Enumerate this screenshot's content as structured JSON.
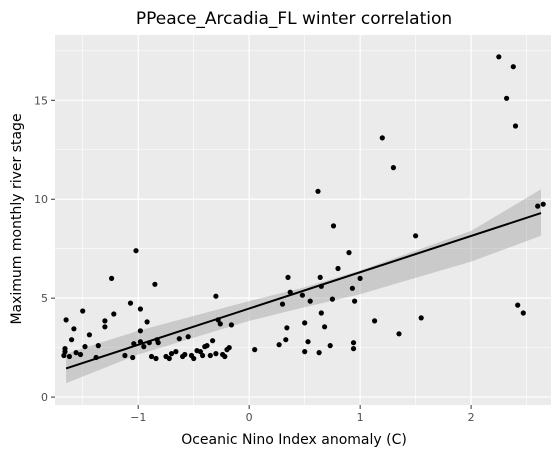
{
  "chart_data": {
    "type": "scatter",
    "title": "PPeace_Arcadia_FL winter correlation",
    "xlabel": "Oceanic Nino Index anomaly (C)",
    "ylabel": "Maximum monthly river stage",
    "xlim": [
      -1.75,
      2.72
    ],
    "ylim": [
      -0.4,
      18.3
    ],
    "x_ticks": [
      -1,
      0,
      1,
      2
    ],
    "x_tick_labels": [
      "−1",
      "0",
      "1",
      "2"
    ],
    "y_ticks": [
      0,
      5,
      10,
      15
    ],
    "y_tick_labels": [
      "0",
      "5",
      "10",
      "15"
    ],
    "grid": true,
    "legend": "none",
    "colors": {
      "panel_bg": "#ebebeb",
      "grid": "#ffffff",
      "points": "#000000",
      "fit_line": "#000000",
      "confidence_band": "#999999"
    },
    "fit_line": {
      "x": [
        -1.65,
        2.63
      ],
      "y": [
        1.45,
        9.3
      ]
    },
    "confidence_band": {
      "x": [
        -1.65,
        -1.0,
        0.0,
        0.5,
        1.0,
        2.0,
        2.63
      ],
      "lower": [
        0.7,
        2.15,
        3.85,
        4.55,
        5.2,
        6.85,
        8.15
      ],
      "upper": [
        2.2,
        3.35,
        4.85,
        5.55,
        6.4,
        8.4,
        10.5
      ]
    },
    "series": [
      {
        "points": [
          [
            -1.65,
            3.9
          ],
          [
            -1.66,
            2.45
          ],
          [
            -1.67,
            2.1
          ],
          [
            -1.66,
            2.3
          ],
          [
            -1.62,
            2.05
          ],
          [
            -1.6,
            2.9
          ],
          [
            -1.58,
            3.45
          ],
          [
            -1.56,
            2.25
          ],
          [
            -1.52,
            2.15
          ],
          [
            -1.5,
            4.35
          ],
          [
            -1.48,
            2.55
          ],
          [
            -1.44,
            3.15
          ],
          [
            -1.38,
            2.0
          ],
          [
            -1.36,
            2.6
          ],
          [
            -1.3,
            3.85
          ],
          [
            -1.3,
            3.55
          ],
          [
            -1.24,
            6.0
          ],
          [
            -1.22,
            4.2
          ],
          [
            -1.12,
            2.1
          ],
          [
            -1.07,
            4.75
          ],
          [
            -1.05,
            2.0
          ],
          [
            -1.04,
            2.7
          ],
          [
            -1.02,
            7.4
          ],
          [
            -0.98,
            4.45
          ],
          [
            -0.98,
            2.8
          ],
          [
            -0.98,
            3.35
          ],
          [
            -0.95,
            2.55
          ],
          [
            -0.92,
            3.8
          ],
          [
            -0.9,
            2.75
          ],
          [
            -0.88,
            2.05
          ],
          [
            -0.85,
            5.7
          ],
          [
            -0.84,
            1.95
          ],
          [
            -0.83,
            2.9
          ],
          [
            -0.82,
            2.75
          ],
          [
            -0.75,
            2.05
          ],
          [
            -0.72,
            1.95
          ],
          [
            -0.7,
            2.2
          ],
          [
            -0.66,
            2.3
          ],
          [
            -0.63,
            2.95
          ],
          [
            -0.6,
            2.05
          ],
          [
            -0.58,
            2.15
          ],
          [
            -0.55,
            3.05
          ],
          [
            -0.52,
            2.1
          ],
          [
            -0.5,
            1.95
          ],
          [
            -0.47,
            2.35
          ],
          [
            -0.44,
            2.3
          ],
          [
            -0.42,
            2.1
          ],
          [
            -0.4,
            2.55
          ],
          [
            -0.38,
            2.6
          ],
          [
            -0.35,
            2.1
          ],
          [
            -0.33,
            2.85
          ],
          [
            -0.3,
            2.2
          ],
          [
            -0.3,
            5.1
          ],
          [
            -0.28,
            3.9
          ],
          [
            -0.26,
            3.7
          ],
          [
            -0.24,
            2.15
          ],
          [
            -0.22,
            2.05
          ],
          [
            -0.2,
            2.4
          ],
          [
            -0.18,
            2.5
          ],
          [
            -0.16,
            3.65
          ],
          [
            0.05,
            2.4
          ],
          [
            0.27,
            2.65
          ],
          [
            0.3,
            4.7
          ],
          [
            0.33,
            2.9
          ],
          [
            0.34,
            3.5
          ],
          [
            0.35,
            6.05
          ],
          [
            0.37,
            5.3
          ],
          [
            0.48,
            5.15
          ],
          [
            0.5,
            3.75
          ],
          [
            0.5,
            2.3
          ],
          [
            0.53,
            2.8
          ],
          [
            0.55,
            4.85
          ],
          [
            0.62,
            10.4
          ],
          [
            0.63,
            2.25
          ],
          [
            0.64,
            6.05
          ],
          [
            0.65,
            5.6
          ],
          [
            0.65,
            4.25
          ],
          [
            0.68,
            3.55
          ],
          [
            0.73,
            2.6
          ],
          [
            0.75,
            4.95
          ],
          [
            0.76,
            8.65
          ],
          [
            0.8,
            6.5
          ],
          [
            0.9,
            7.3
          ],
          [
            0.93,
            5.5
          ],
          [
            0.94,
            2.45
          ],
          [
            0.94,
            2.75
          ],
          [
            0.95,
            4.85
          ],
          [
            1.0,
            6.0
          ],
          [
            1.13,
            3.85
          ],
          [
            1.2,
            13.1
          ],
          [
            1.3,
            11.6
          ],
          [
            1.35,
            3.2
          ],
          [
            1.5,
            8.15
          ],
          [
            1.55,
            4.0
          ],
          [
            2.25,
            17.2
          ],
          [
            2.32,
            15.1
          ],
          [
            2.38,
            16.7
          ],
          [
            2.4,
            13.7
          ],
          [
            2.42,
            4.65
          ],
          [
            2.47,
            4.25
          ],
          [
            2.6,
            9.65
          ],
          [
            2.65,
            9.75
          ]
        ]
      }
    ]
  }
}
